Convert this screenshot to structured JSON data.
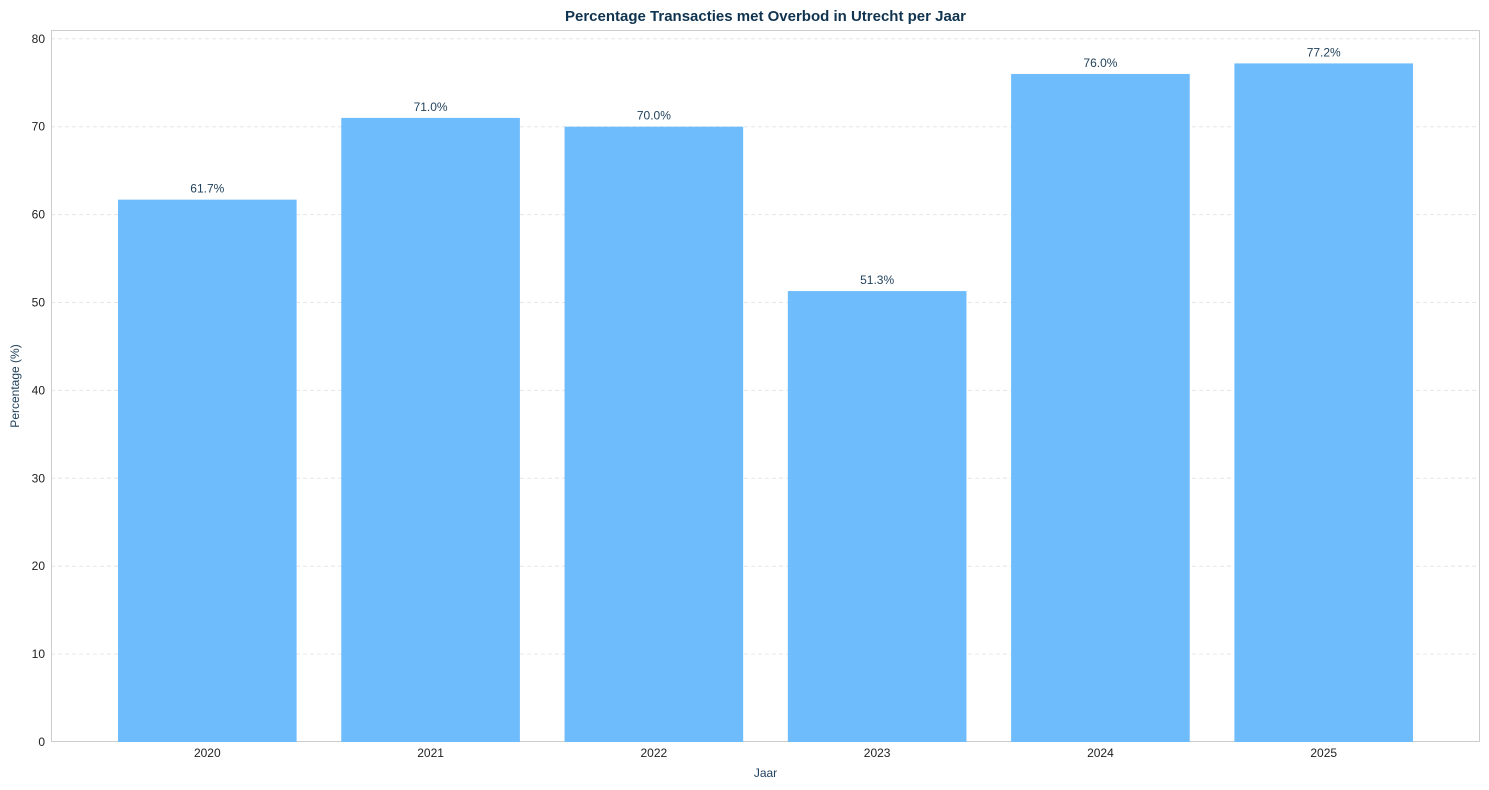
{
  "colors": {
    "bar": "#6fbcfd",
    "title": "#10334f",
    "axis_label": "#1e3f5a",
    "tick": "#222222",
    "value_label": "#1e3f5a",
    "grid": "#e6e6e6",
    "frame": "#cccccc"
  },
  "chart_data": {
    "type": "bar",
    "title": "Percentage Transacties met Overbod in Utrecht per Jaar",
    "xlabel": "Jaar",
    "ylabel": "Percentage (%)",
    "categories": [
      "2020",
      "2021",
      "2022",
      "2023",
      "2024",
      "2025"
    ],
    "values": [
      61.7,
      71.0,
      70.0,
      51.3,
      76.0,
      77.2
    ],
    "value_labels": [
      "61.7%",
      "71.0%",
      "70.0%",
      "51.3%",
      "76.0%",
      "77.2%"
    ],
    "ylim": [
      0,
      81
    ],
    "yticks": [
      0,
      10,
      20,
      30,
      40,
      50,
      60,
      70,
      80
    ],
    "grid": true,
    "grid_style": "dashed",
    "legend": "none"
  }
}
